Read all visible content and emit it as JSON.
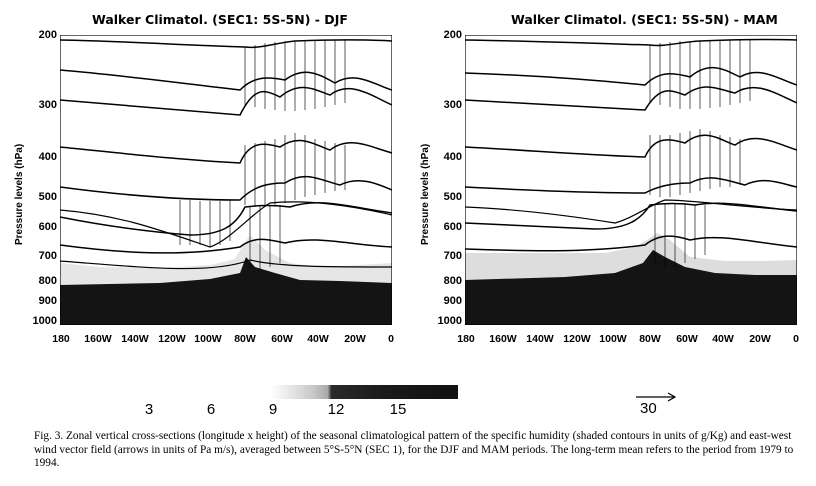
{
  "panels": [
    {
      "title": "Walker Climatol. (SEC1: 5S-5N) - DJF",
      "season": "DJF"
    },
    {
      "title": "Walker Climatol. (SEC1: 5S-5N) - MAM",
      "season": "MAM"
    }
  ],
  "y_axis_label": "Pressure levels (hPa)",
  "y_ticks": [
    "200",
    "300",
    "400",
    "500",
    "600",
    "700",
    "800",
    "900",
    "1000"
  ],
  "x_ticks": [
    "180",
    "160W",
    "140W",
    "120W",
    "100W",
    "80W",
    "60W",
    "40W",
    "20W",
    "0"
  ],
  "legend": {
    "labels": [
      "3",
      "6",
      "9",
      "12",
      "15"
    ]
  },
  "vector_scale": "30",
  "caption": "Fig. 3. Zonal vertical cross-sections (longitude x height) of the seasonal climatological pattern of the specific humidity (shaded contours in units of g/Kg) and east-west wind vector field (arrows in units of Pa m/s), averaged between 5°S-5°N (SEC 1), for the DJF and MAM periods. The long-term mean refers to the period from 1979 to 1994.",
  "colors": {
    "ink": "#000000",
    "shade_dark": "#141414",
    "shade_light": "#c8c8c8"
  }
}
